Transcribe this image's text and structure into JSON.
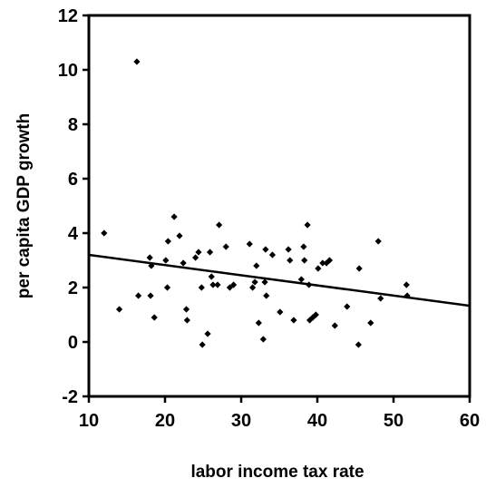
{
  "chart_data": {
    "type": "scatter",
    "title": "",
    "xlabel": "labor income tax rate",
    "ylabel": "per capita GDP growth",
    "xlim": [
      10,
      60
    ],
    "ylim": [
      -2,
      12
    ],
    "x_ticks": [
      "10",
      "20",
      "30",
      "40",
      "50",
      "60"
    ],
    "y_ticks": [
      "-2",
      "0",
      "2",
      "4",
      "6",
      "8",
      "10",
      "12"
    ],
    "grid": false,
    "legend": "none",
    "colors": {
      "points": "#000000",
      "line": "#000000",
      "background": "#ffffff"
    },
    "series": [
      {
        "values": [
          [
            12.0,
            4.0
          ],
          [
            14.0,
            1.2
          ],
          [
            16.3,
            10.3
          ],
          [
            16.5,
            1.7
          ],
          [
            18.0,
            3.1
          ],
          [
            18.1,
            1.7
          ],
          [
            18.2,
            2.8
          ],
          [
            18.6,
            0.9
          ],
          [
            20.1,
            3.0
          ],
          [
            20.3,
            2.0
          ],
          [
            20.4,
            3.7
          ],
          [
            21.2,
            4.6
          ],
          [
            21.9,
            3.9
          ],
          [
            22.4,
            2.9
          ],
          [
            22.8,
            1.2
          ],
          [
            22.9,
            0.8
          ],
          [
            24.0,
            3.1
          ],
          [
            24.4,
            3.3
          ],
          [
            24.8,
            2.0
          ],
          [
            24.9,
            -0.1
          ],
          [
            25.6,
            0.3
          ],
          [
            25.9,
            3.3
          ],
          [
            26.1,
            2.4
          ],
          [
            26.3,
            2.1
          ],
          [
            26.9,
            2.1
          ],
          [
            27.1,
            4.3
          ],
          [
            28.0,
            3.5
          ],
          [
            28.5,
            2.0
          ],
          [
            29.0,
            2.1
          ],
          [
            31.1,
            3.6
          ],
          [
            31.5,
            2.0
          ],
          [
            31.8,
            2.2
          ],
          [
            32.0,
            2.8
          ],
          [
            32.3,
            0.7
          ],
          [
            32.9,
            0.1
          ],
          [
            33.1,
            2.2
          ],
          [
            33.2,
            3.4
          ],
          [
            33.3,
            1.7
          ],
          [
            34.1,
            3.2
          ],
          [
            35.1,
            1.1
          ],
          [
            36.2,
            3.4
          ],
          [
            36.4,
            3.0
          ],
          [
            36.9,
            0.8
          ],
          [
            37.9,
            2.3
          ],
          [
            38.2,
            3.5
          ],
          [
            38.3,
            3.0
          ],
          [
            38.7,
            4.3
          ],
          [
            38.9,
            2.1
          ],
          [
            39.0,
            0.8
          ],
          [
            39.4,
            0.9
          ],
          [
            39.8,
            1.0
          ],
          [
            40.1,
            2.7
          ],
          [
            40.7,
            2.9
          ],
          [
            41.2,
            2.9
          ],
          [
            41.6,
            3.0
          ],
          [
            42.3,
            0.6
          ],
          [
            43.9,
            1.3
          ],
          [
            45.4,
            -0.1
          ],
          [
            45.5,
            2.7
          ],
          [
            47.0,
            0.7
          ],
          [
            48.0,
            3.7
          ],
          [
            48.3,
            1.6
          ],
          [
            51.7,
            2.1
          ],
          [
            51.8,
            1.7
          ]
        ]
      }
    ],
    "trend_line": {
      "x": [
        10,
        60
      ],
      "y": [
        3.2,
        1.33
      ]
    }
  }
}
